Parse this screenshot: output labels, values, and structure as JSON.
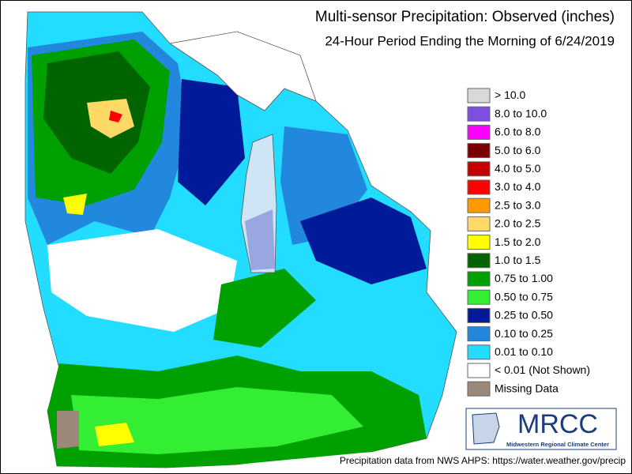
{
  "header": {
    "title": "Multi-sensor Precipitation: Observed (inches)",
    "subtitle": "24-Hour Period Ending the Morning of 6/24/2019"
  },
  "legend": {
    "items": [
      {
        "label": "> 10.0",
        "color": "#d9d9d9"
      },
      {
        "label": "8.0 to 10.0",
        "color": "#7d50e0"
      },
      {
        "label": "6.0 to 8.0",
        "color": "#ff00ff"
      },
      {
        "label": "5.0 to 6.0",
        "color": "#7a0000"
      },
      {
        "label": "4.0 to 5.0",
        "color": "#c40000"
      },
      {
        "label": "3.0 to 4.0",
        "color": "#ff0000"
      },
      {
        "label": "2.5 to 3.0",
        "color": "#ff9900"
      },
      {
        "label": "2.0 to 2.5",
        "color": "#ffd966"
      },
      {
        "label": "1.5 to 2.0",
        "color": "#ffff00"
      },
      {
        "label": "1.0 to 1.5",
        "color": "#006400"
      },
      {
        "label": "0.75 to 1.00",
        "color": "#00a000"
      },
      {
        "label": "0.50 to 0.75",
        "color": "#33ee33"
      },
      {
        "label": "0.25 to 0.50",
        "color": "#001a99"
      },
      {
        "label": "0.10 to 0.25",
        "color": "#2288dd"
      },
      {
        "label": "0.01 to 0.10",
        "color": "#22ddff"
      },
      {
        "label": "< 0.01 (Not Shown)",
        "color": "#ffffff"
      },
      {
        "label": "Missing Data",
        "color": "#9c8878"
      }
    ]
  },
  "logo": {
    "name": "MRCC",
    "full_name": "Midwestern Regional Climate Center"
  },
  "footer": {
    "credit": "Precipitation data from NWS AHPS: https://water.weather.gov/precip"
  }
}
